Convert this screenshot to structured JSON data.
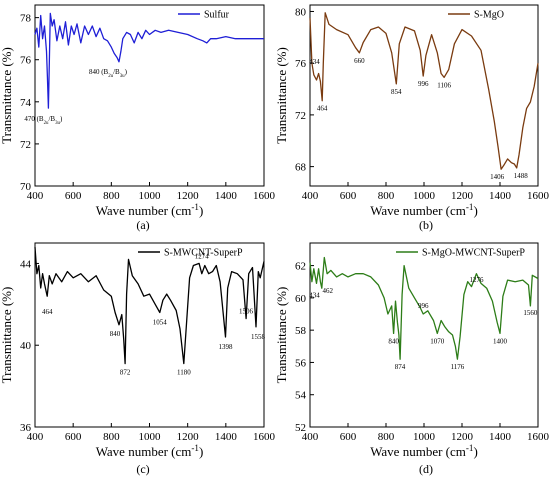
{
  "chart_data": [
    {
      "type": "line",
      "panel": "(a)",
      "xlabel": "Wave number (cm",
      "xlabel_sup": "-1",
      "xlabel_end": ")",
      "ylabel": "Transmittance (%)",
      "xlim": [
        400,
        1600
      ],
      "ylim": [
        70,
        78.6
      ],
      "xticks": [
        400,
        600,
        800,
        1000,
        1200,
        1400,
        1600
      ],
      "yticks": [
        70,
        72,
        74,
        76,
        78
      ],
      "color": "#1f1fd6",
      "legend_position": "top-right",
      "series": [
        {
          "name": "Sulfur",
          "x": [
            400,
            410,
            420,
            430,
            440,
            450,
            460,
            465,
            470,
            475,
            480,
            490,
            500,
            515,
            530,
            545,
            560,
            575,
            590,
            605,
            620,
            640,
            660,
            680,
            700,
            720,
            740,
            760,
            780,
            800,
            815,
            830,
            840,
            850,
            860,
            880,
            900,
            920,
            940,
            960,
            980,
            1000,
            1030,
            1060,
            1100,
            1150,
            1200,
            1250,
            1280,
            1300,
            1320,
            1350,
            1400,
            1450,
            1500,
            1550,
            1600
          ],
          "y": [
            77.2,
            77.5,
            76.6,
            78.1,
            77.0,
            77.6,
            76.4,
            75.2,
            73.7,
            75.8,
            78.2,
            77.6,
            77.9,
            76.9,
            77.6,
            77.0,
            77.8,
            76.7,
            77.6,
            77.2,
            77.7,
            76.8,
            77.6,
            77.2,
            77.6,
            77.1,
            77.5,
            77.0,
            76.9,
            76.6,
            76.3,
            76.1,
            75.9,
            76.4,
            77.0,
            77.3,
            77.2,
            76.8,
            77.3,
            77.0,
            77.4,
            77.2,
            77.4,
            77.3,
            77.4,
            77.3,
            77.2,
            77.0,
            76.9,
            76.8,
            77.0,
            77.0,
            77.1,
            77.0,
            77.0,
            77.0,
            77.0
          ]
        }
      ],
      "annotations": [
        {
          "text": "840 (B",
          "sub1": "2u",
          "mid": "/B",
          "sub2": "3u",
          "end": ")",
          "x": 840,
          "y": 75.9
        },
        {
          "text": "470 (B",
          "sub1": "2u",
          "mid": "/B",
          "sub2": "3u",
          "end": ")",
          "x": 470,
          "y": 73.7
        }
      ]
    },
    {
      "type": "line",
      "panel": "(b)",
      "xlabel": "Wave number (cm",
      "xlabel_sup": "-1",
      "xlabel_end": ")",
      "ylabel": "Transmittance (%)",
      "xlim": [
        400,
        1600
      ],
      "ylim": [
        66.5,
        80.5
      ],
      "xticks": [
        400,
        600,
        800,
        1000,
        1200,
        1400,
        1600
      ],
      "yticks": [
        68,
        72,
        76,
        80
      ],
      "color": "#7a3b10",
      "legend_position": "top-right",
      "series": [
        {
          "name": "S-MgO",
          "x": [
            400,
            410,
            420,
            434,
            445,
            455,
            464,
            470,
            480,
            500,
            540,
            600,
            640,
            660,
            680,
            720,
            760,
            800,
            830,
            854,
            870,
            900,
            950,
            980,
            996,
            1010,
            1040,
            1070,
            1090,
            1106,
            1130,
            1160,
            1200,
            1250,
            1300,
            1340,
            1370,
            1390,
            1406,
            1420,
            1440,
            1460,
            1475,
            1488,
            1500,
            1520,
            1540,
            1560,
            1580,
            1600
          ],
          "y": [
            79.5,
            76.0,
            75.1,
            74.7,
            75.2,
            74.6,
            73.1,
            76.0,
            79.9,
            79.0,
            78.6,
            78.2,
            77.2,
            76.8,
            77.6,
            78.6,
            78.8,
            78.3,
            76.8,
            74.4,
            77.5,
            78.8,
            78.5,
            77.0,
            75.0,
            76.6,
            78.2,
            76.8,
            75.2,
            74.9,
            75.5,
            77.5,
            78.6,
            78.1,
            77.0,
            74.0,
            71.5,
            69.5,
            67.8,
            68.1,
            68.6,
            68.3,
            68.2,
            67.9,
            68.9,
            71.0,
            72.5,
            73.0,
            74.2,
            76.0
          ]
        }
      ],
      "annotations": [
        {
          "text": "434",
          "x": 434,
          "y": 74.7
        },
        {
          "text": "464",
          "x": 464,
          "y": 73.1
        },
        {
          "text": "660",
          "x": 660,
          "y": 76.8
        },
        {
          "text": "854",
          "x": 854,
          "y": 74.4
        },
        {
          "text": "996",
          "x": 996,
          "y": 75.0
        },
        {
          "text": "1106",
          "x": 1106,
          "y": 74.9
        },
        {
          "text": "1406",
          "x": 1406,
          "y": 67.8
        },
        {
          "text": "1488",
          "x": 1488,
          "y": 67.9
        }
      ]
    },
    {
      "type": "line",
      "panel": "(c)",
      "xlabel": "Wave number (cm",
      "xlabel_sup": "-1",
      "xlabel_end": ")",
      "ylabel": "Transmittance (%)",
      "xlim": [
        400,
        1600
      ],
      "ylim": [
        36,
        45
      ],
      "xticks": [
        400,
        600,
        800,
        1000,
        1200,
        1400,
        1600
      ],
      "yticks": [
        36,
        40,
        44
      ],
      "color": "#000000",
      "legend_position": "top-right",
      "series": [
        {
          "name": "S-MWCNT-SuperP",
          "x": [
            400,
            410,
            420,
            430,
            440,
            450,
            464,
            475,
            490,
            510,
            540,
            570,
            600,
            640,
            680,
            720,
            760,
            800,
            820,
            840,
            855,
            865,
            872,
            880,
            890,
            910,
            940,
            970,
            1000,
            1030,
            1054,
            1070,
            1090,
            1110,
            1140,
            1160,
            1180,
            1195,
            1210,
            1230,
            1260,
            1274,
            1290,
            1310,
            1330,
            1350,
            1370,
            1398,
            1410,
            1430,
            1460,
            1490,
            1506,
            1520,
            1540,
            1558,
            1570,
            1580,
            1600
          ],
          "y": [
            44.8,
            43.5,
            43.9,
            42.8,
            43.5,
            43.0,
            42.4,
            43.4,
            43.0,
            43.5,
            43.1,
            43.6,
            43.3,
            43.5,
            43.1,
            43.4,
            42.7,
            42.4,
            41.6,
            41.0,
            41.5,
            40.3,
            39.1,
            42.5,
            44.2,
            43.4,
            43.0,
            42.4,
            42.5,
            42.0,
            41.6,
            42.2,
            42.5,
            42.2,
            41.7,
            40.8,
            39.1,
            41.2,
            43.3,
            43.9,
            44.0,
            43.5,
            43.9,
            43.5,
            43.6,
            43.9,
            43.1,
            40.4,
            42.8,
            43.6,
            43.5,
            43.2,
            41.3,
            43.5,
            43.8,
            40.9,
            43.6,
            43.3,
            44.1
          ]
        }
      ],
      "annotations": [
        {
          "text": "464",
          "x": 464,
          "y": 42.4
        },
        {
          "text": "840",
          "x": 840,
          "y": 41.0
        },
        {
          "text": "872",
          "x": 872,
          "y": 39.1
        },
        {
          "text": "1054",
          "x": 1054,
          "y": 41.6
        },
        {
          "text": "1180",
          "x": 1180,
          "y": 39.1
        },
        {
          "text": "1274",
          "x": 1274,
          "y": 44.0
        },
        {
          "text": "1398",
          "x": 1398,
          "y": 40.4
        },
        {
          "text": "1506",
          "x": 1506,
          "y": 41.3
        },
        {
          "text": "1558",
          "x": 1558,
          "y": 40.9
        }
      ]
    },
    {
      "type": "line",
      "panel": "(d)",
      "xlabel": "Wave number (cm",
      "xlabel_sup": "-1",
      "xlabel_end": ")",
      "ylabel": "Transmittance (%)",
      "xlim": [
        400,
        1600
      ],
      "ylim": [
        52,
        63.4
      ],
      "xticks": [
        400,
        600,
        800,
        1000,
        1200,
        1400,
        1600
      ],
      "yticks": [
        52,
        54,
        56,
        58,
        60,
        62
      ],
      "color": "#2d7d18",
      "legend_position": "top-right",
      "series": [
        {
          "name": "S-MgO-MWCNT-SuperP",
          "x": [
            400,
            410,
            420,
            434,
            445,
            455,
            462,
            475,
            490,
            510,
            540,
            570,
            600,
            640,
            680,
            720,
            760,
            790,
            810,
            830,
            840,
            850,
            860,
            868,
            874,
            885,
            895,
            920,
            950,
            980,
            996,
            1020,
            1050,
            1070,
            1090,
            1110,
            1130,
            1150,
            1165,
            1176,
            1190,
            1210,
            1230,
            1250,
            1276,
            1300,
            1330,
            1360,
            1385,
            1400,
            1415,
            1440,
            1480,
            1520,
            1550,
            1560,
            1570,
            1600
          ],
          "y": [
            62.2,
            61.0,
            61.8,
            60.9,
            61.8,
            61.0,
            60.6,
            62.5,
            61.5,
            61.7,
            61.3,
            61.5,
            61.3,
            61.5,
            61.5,
            61.3,
            60.8,
            60.0,
            59.0,
            59.5,
            57.8,
            59.8,
            58.5,
            57.7,
            56.2,
            60.2,
            62.0,
            60.6,
            60.0,
            59.4,
            59.0,
            59.2,
            58.6,
            57.8,
            58.6,
            58.2,
            57.9,
            57.7,
            57.0,
            56.2,
            57.6,
            60.2,
            61.0,
            60.7,
            61.5,
            60.9,
            60.6,
            59.8,
            58.5,
            57.8,
            60.1,
            61.1,
            61.0,
            61.1,
            60.8,
            59.5,
            61.4,
            61.2
          ]
        }
      ],
      "annotations": [
        {
          "text": "434",
          "x": 434,
          "y": 60.9
        },
        {
          "text": "462",
          "x": 462,
          "y": 60.6
        },
        {
          "text": "840",
          "x": 840,
          "y": 57.8
        },
        {
          "text": "874",
          "x": 874,
          "y": 56.2
        },
        {
          "text": "996",
          "x": 996,
          "y": 59.0
        },
        {
          "text": "1070",
          "x": 1070,
          "y": 57.8
        },
        {
          "text": "1176",
          "x": 1176,
          "y": 56.2
        },
        {
          "text": "1276",
          "x": 1276,
          "y": 60.6
        },
        {
          "text": "1400",
          "x": 1400,
          "y": 57.8
        },
        {
          "text": "1560",
          "x": 1560,
          "y": 59.5
        }
      ]
    }
  ]
}
